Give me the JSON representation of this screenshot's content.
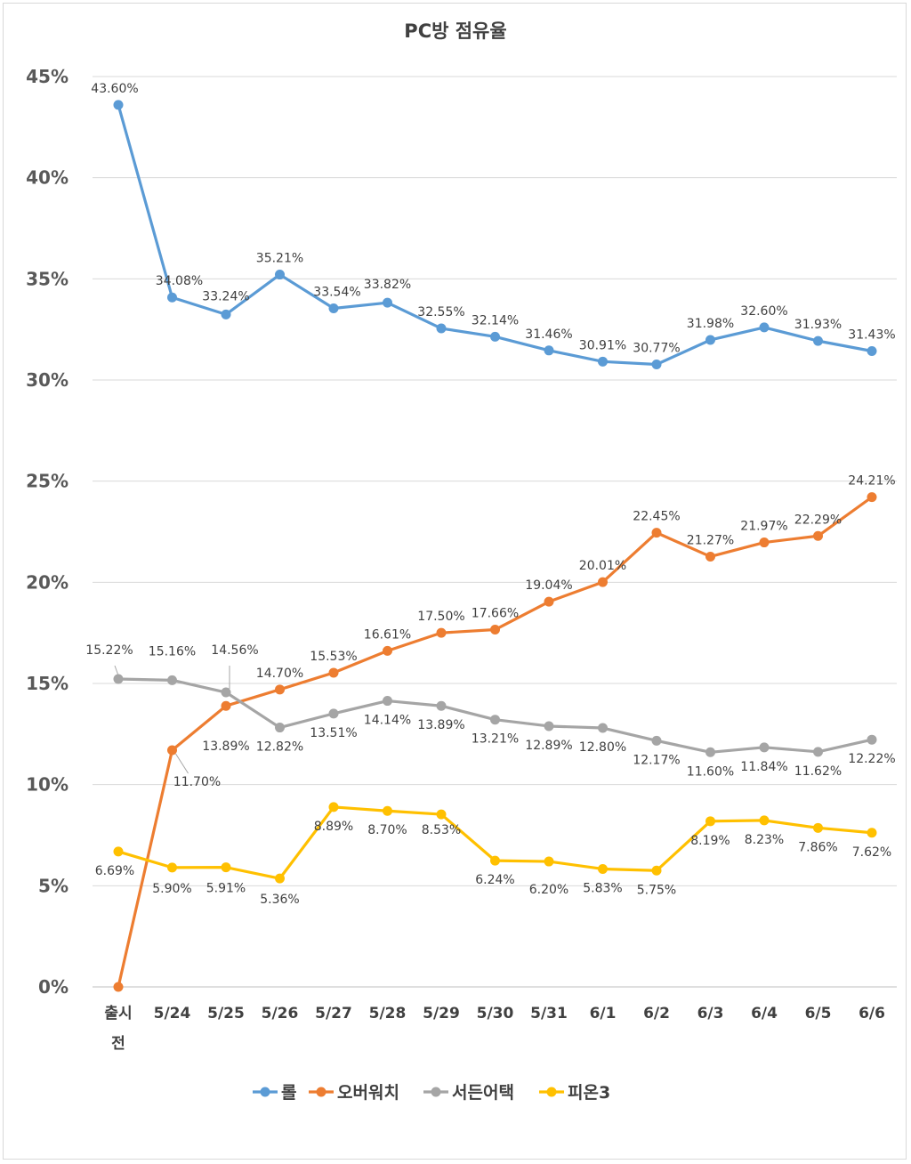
{
  "chart_data": {
    "type": "line",
    "title": "PC방 점유율",
    "xlabel": "",
    "ylabel": "",
    "ylim": [
      0,
      45
    ],
    "yticks": [
      "0%",
      "5%",
      "10%",
      "15%",
      "20%",
      "25%",
      "30%",
      "35%",
      "40%",
      "45%"
    ],
    "y_tick_values": [
      0,
      5,
      10,
      15,
      20,
      25,
      30,
      35,
      40,
      45
    ],
    "grid": true,
    "legend_position": "bottom",
    "categories": [
      [
        "출시",
        "전"
      ],
      [
        "5/24"
      ],
      [
        "5/25"
      ],
      [
        "5/26"
      ],
      [
        "5/27"
      ],
      [
        "5/28"
      ],
      [
        "5/29"
      ],
      [
        "5/30"
      ],
      [
        "5/31"
      ],
      [
        "6/1"
      ],
      [
        "6/2"
      ],
      [
        "6/3"
      ],
      [
        "6/4"
      ],
      [
        "6/5"
      ],
      [
        "6/6"
      ]
    ],
    "series": [
      {
        "name": "롤",
        "color": "#5b9bd5",
        "values": [
          43.6,
          34.08,
          33.24,
          35.21,
          33.54,
          33.82,
          32.55,
          32.14,
          31.46,
          30.91,
          30.77,
          31.98,
          32.6,
          31.93,
          31.43
        ],
        "labels": [
          "43.60%",
          "34.08%",
          "33.24%",
          "35.21%",
          "33.54%",
          "33.82%",
          "32.55%",
          "32.14%",
          "31.46%",
          "30.91%",
          "30.77%",
          "31.98%",
          "32.60%",
          "31.93%",
          "31.43%"
        ]
      },
      {
        "name": "오버워치",
        "color": "#ed7d31",
        "values": [
          0,
          11.7,
          13.89,
          14.7,
          15.53,
          16.61,
          17.5,
          17.66,
          19.04,
          20.01,
          22.45,
          21.27,
          21.97,
          22.29,
          24.21
        ],
        "labels": [
          "",
          "11.70%",
          "13.89%",
          "14.70%",
          "15.53%",
          "16.61%",
          "17.50%",
          "17.66%",
          "19.04%",
          "20.01%",
          "22.45%",
          "21.27%",
          "21.97%",
          "22.29%",
          "24.21%"
        ]
      },
      {
        "name": "서든어택",
        "color": "#a5a5a5",
        "values": [
          15.22,
          15.16,
          14.56,
          12.82,
          13.51,
          14.14,
          13.89,
          13.21,
          12.89,
          12.8,
          12.17,
          11.6,
          11.84,
          11.62,
          12.22
        ],
        "labels": [
          "15.22%",
          "15.16%",
          "14.56%",
          "12.82%",
          "13.51%",
          "14.14%",
          "13.89%",
          "13.21%",
          "12.89%",
          "12.80%",
          "12.17%",
          "11.60%",
          "11.84%",
          "11.62%",
          "12.22%"
        ]
      },
      {
        "name": "피온3",
        "color": "#ffc000",
        "values": [
          6.69,
          5.9,
          5.91,
          5.36,
          8.89,
          8.7,
          8.53,
          6.24,
          6.2,
          5.83,
          5.75,
          8.19,
          8.23,
          7.86,
          7.62
        ],
        "labels": [
          "6.69%",
          "5.90%",
          "5.91%",
          "5.36%",
          "8.89%",
          "8.70%",
          "8.53%",
          "6.24%",
          "6.20%",
          "5.83%",
          "5.75%",
          "8.19%",
          "8.23%",
          "7.86%",
          "7.62%"
        ]
      }
    ]
  }
}
